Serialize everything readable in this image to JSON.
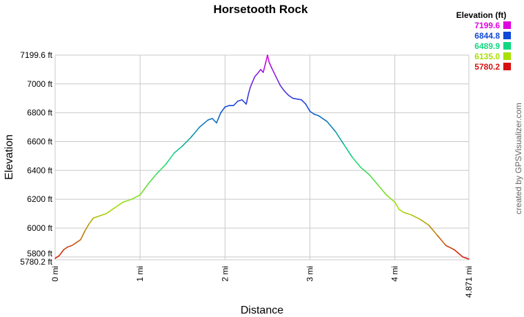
{
  "chart_data": {
    "type": "line",
    "title": "Horsetooth Rock",
    "xlabel": "Distance",
    "ylabel": "Elevation",
    "xlim": [
      0,
      4.871
    ],
    "ylim": [
      5780.2,
      7199.6
    ],
    "x_ticks": [
      {
        "value": 0,
        "label": "0 mi"
      },
      {
        "value": 1,
        "label": "1 mi"
      },
      {
        "value": 2,
        "label": "2 mi"
      },
      {
        "value": 3,
        "label": "3 mi"
      },
      {
        "value": 4,
        "label": "4 mi"
      },
      {
        "value": 4.871,
        "label": "4.871 mi"
      }
    ],
    "y_ticks": [
      {
        "value": 5780.2,
        "label": "5780.2 ft"
      },
      {
        "value": 5800,
        "label": "5800 ft"
      },
      {
        "value": 6000,
        "label": "6000 ft"
      },
      {
        "value": 6200,
        "label": "6200 ft"
      },
      {
        "value": 6400,
        "label": "6400 ft"
      },
      {
        "value": 6600,
        "label": "6600 ft"
      },
      {
        "value": 6800,
        "label": "6800 ft"
      },
      {
        "value": 7000,
        "label": "7000 ft"
      },
      {
        "value": 7199.6,
        "label": "7199.6 ft"
      }
    ],
    "grid": true,
    "legend": {
      "title": "Elevation (ft)",
      "position": "top-right",
      "entries": [
        {
          "label": "7199.6",
          "color": "#e000e0"
        },
        {
          "label": "6844.8",
          "color": "#1048d8"
        },
        {
          "label": "6489.9",
          "color": "#10d880"
        },
        {
          "label": "6135.0",
          "color": "#a8e000"
        },
        {
          "label": "5780.2",
          "color": "#d81010"
        }
      ]
    },
    "color_scale": {
      "domain": [
        5780.2,
        6135.0,
        6489.9,
        6844.8,
        7199.6
      ],
      "colors": [
        "#d81010",
        "#a8e000",
        "#10d880",
        "#1048d8",
        "#e000e0"
      ]
    },
    "series": [
      {
        "x": [
          0,
          0.05,
          0.1,
          0.15,
          0.2,
          0.25,
          0.3,
          0.35,
          0.4,
          0.45,
          0.5,
          0.55,
          0.6,
          0.7,
          0.8,
          0.9,
          1.0,
          1.05,
          1.1,
          1.2,
          1.3,
          1.4,
          1.5,
          1.6,
          1.7,
          1.8,
          1.85,
          1.9,
          1.95,
          2.0,
          2.05,
          2.1,
          2.15,
          2.2,
          2.25,
          2.28,
          2.3,
          2.35,
          2.38,
          2.42,
          2.45,
          2.48,
          2.5,
          2.52,
          2.55,
          2.6,
          2.65,
          2.7,
          2.75,
          2.8,
          2.9,
          2.95,
          3.0,
          3.05,
          3.1,
          3.2,
          3.3,
          3.4,
          3.5,
          3.6,
          3.7,
          3.8,
          3.9,
          4.0,
          4.05,
          4.1,
          4.2,
          4.3,
          4.4,
          4.5,
          4.6,
          4.7,
          4.8,
          4.871
        ],
        "y": [
          5790,
          5810,
          5850,
          5870,
          5880,
          5900,
          5920,
          5980,
          6030,
          6070,
          6080,
          6090,
          6100,
          6140,
          6180,
          6200,
          6230,
          6270,
          6310,
          6380,
          6440,
          6520,
          6570,
          6630,
          6700,
          6750,
          6760,
          6730,
          6800,
          6840,
          6850,
          6850,
          6880,
          6890,
          6860,
          6940,
          6980,
          7050,
          7070,
          7100,
          7080,
          7150,
          7199.6,
          7150,
          7110,
          7050,
          6990,
          6950,
          6920,
          6900,
          6890,
          6860,
          6810,
          6790,
          6780,
          6740,
          6670,
          6580,
          6490,
          6420,
          6370,
          6300,
          6230,
          6180,
          6130,
          6110,
          6090,
          6060,
          6020,
          5950,
          5880,
          5850,
          5800,
          5785
        ]
      }
    ]
  },
  "credit_text": "created by GPSVisualizer.com"
}
